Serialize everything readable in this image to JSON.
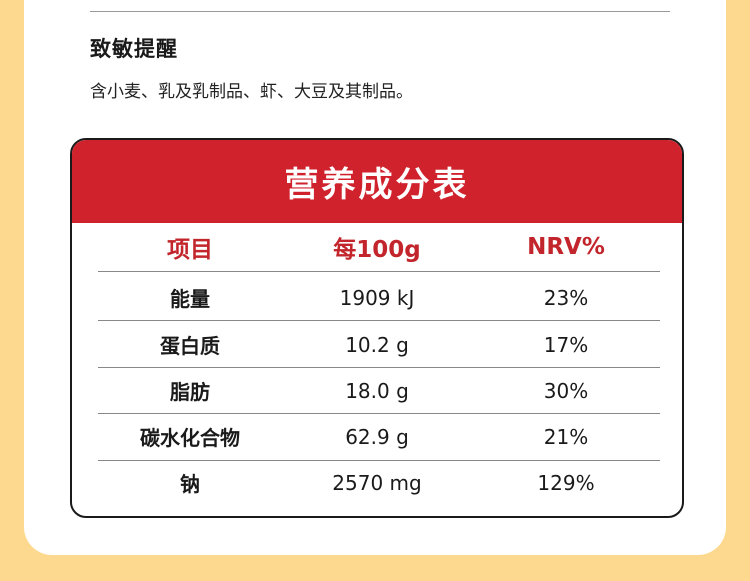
{
  "allergy": {
    "title": "致敏提醒",
    "text": "含小麦、乳及乳制品、虾、大豆及其制品。"
  },
  "nutrition": {
    "title": "营养成分表",
    "headers": [
      "项目",
      "每100g",
      "NRV%"
    ],
    "rows": [
      {
        "item": "能量",
        "per100g": "1909 kJ",
        "nrv": "23%"
      },
      {
        "item": "蛋白质",
        "per100g": "10.2 g",
        "nrv": "17%"
      },
      {
        "item": "脂肪",
        "per100g": "18.0 g",
        "nrv": "30%"
      },
      {
        "item": "碳水化合物",
        "per100g": "62.9 g",
        "nrv": "21%"
      },
      {
        "item": "钠",
        "per100g": "2570 mg",
        "nrv": "129%"
      }
    ]
  },
  "colors": {
    "background": "#fcd98e",
    "header_red": "#d0222d",
    "header_text_red": "#c2252b"
  }
}
